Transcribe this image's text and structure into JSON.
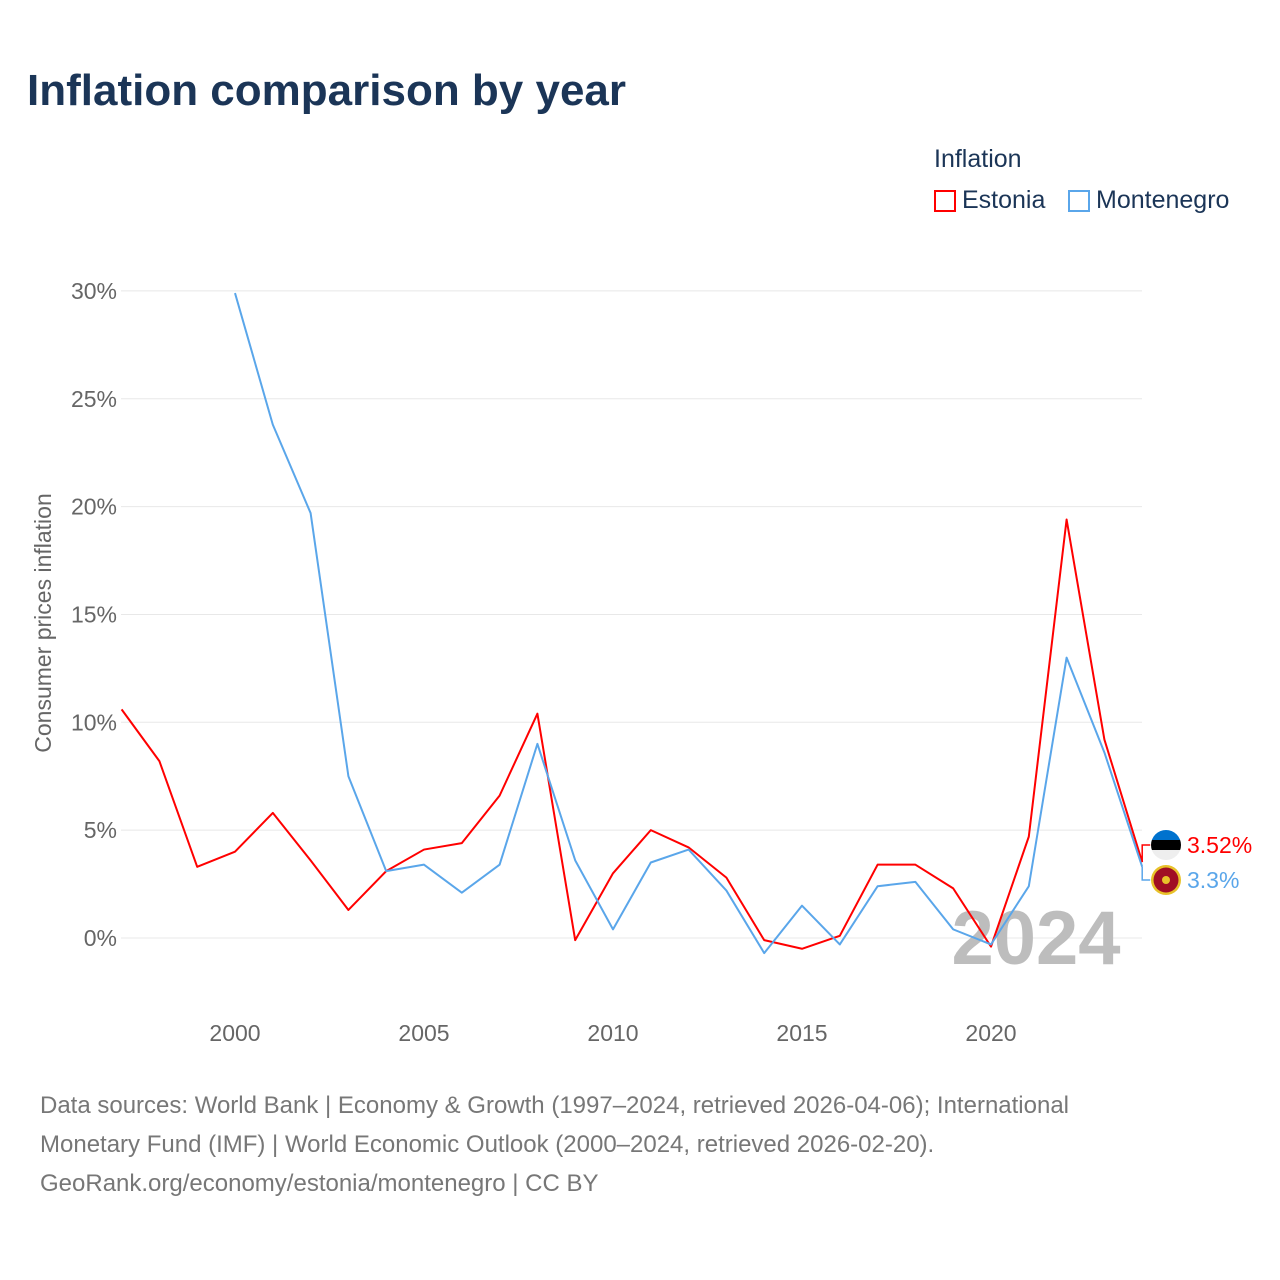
{
  "title": "Inflation comparison by year",
  "legend": {
    "title": "Inflation",
    "items": [
      {
        "name": "Estonia",
        "color": "#ff0000"
      },
      {
        "name": "Montenegro",
        "color": "#5aa6ea"
      }
    ]
  },
  "watermark_year": "2024",
  "footer": [
    "Data sources: World Bank | Economy & Growth (1997–2024, retrieved 2026-04-06); International",
    "Monetary Fund (IMF) | World Economic Outlook (2000–2024, retrieved 2026-02-20).",
    "GeoRank.org/economy/estonia/montenegro | CC BY"
  ],
  "chart_data": {
    "type": "line",
    "title": "Inflation comparison by year",
    "xlabel": "",
    "ylabel": "Consumer prices inflation",
    "xlim": [
      1997,
      2024
    ],
    "ylim": [
      -3,
      31
    ],
    "x_ticks": [
      2000,
      2005,
      2010,
      2015,
      2020
    ],
    "y_ticks": [
      0,
      5,
      10,
      15,
      20,
      25,
      30
    ],
    "y_tick_labels": [
      "0%",
      "5%",
      "10%",
      "15%",
      "20%",
      "25%",
      "30%"
    ],
    "grid": true,
    "legend_position": "top-right",
    "series": [
      {
        "name": "Estonia",
        "color": "#ff0000",
        "end_label": "3.52%",
        "x": [
          1997,
          1998,
          1999,
          2000,
          2001,
          2002,
          2003,
          2004,
          2005,
          2006,
          2007,
          2008,
          2009,
          2010,
          2011,
          2012,
          2013,
          2014,
          2015,
          2016,
          2017,
          2018,
          2019,
          2020,
          2021,
          2022,
          2023,
          2024
        ],
        "values": [
          10.6,
          8.2,
          3.3,
          4.0,
          5.8,
          3.6,
          1.3,
          3.1,
          4.1,
          4.4,
          6.6,
          10.4,
          -0.1,
          3.0,
          5.0,
          4.2,
          2.8,
          -0.1,
          -0.5,
          0.1,
          3.4,
          3.4,
          2.3,
          -0.4,
          4.7,
          19.4,
          9.2,
          3.52
        ]
      },
      {
        "name": "Montenegro",
        "color": "#5aa6ea",
        "end_label": "3.3%",
        "x": [
          2000,
          2001,
          2002,
          2003,
          2004,
          2005,
          2006,
          2007,
          2008,
          2009,
          2010,
          2011,
          2012,
          2013,
          2014,
          2015,
          2016,
          2017,
          2018,
          2019,
          2020,
          2021,
          2022,
          2023,
          2024
        ],
        "values": [
          29.9,
          23.8,
          19.7,
          7.5,
          3.1,
          3.4,
          2.1,
          3.4,
          9.0,
          3.6,
          0.4,
          3.5,
          4.1,
          2.2,
          -0.7,
          1.5,
          -0.3,
          2.4,
          2.6,
          0.4,
          -0.3,
          2.4,
          13.0,
          8.6,
          3.3
        ]
      }
    ]
  }
}
